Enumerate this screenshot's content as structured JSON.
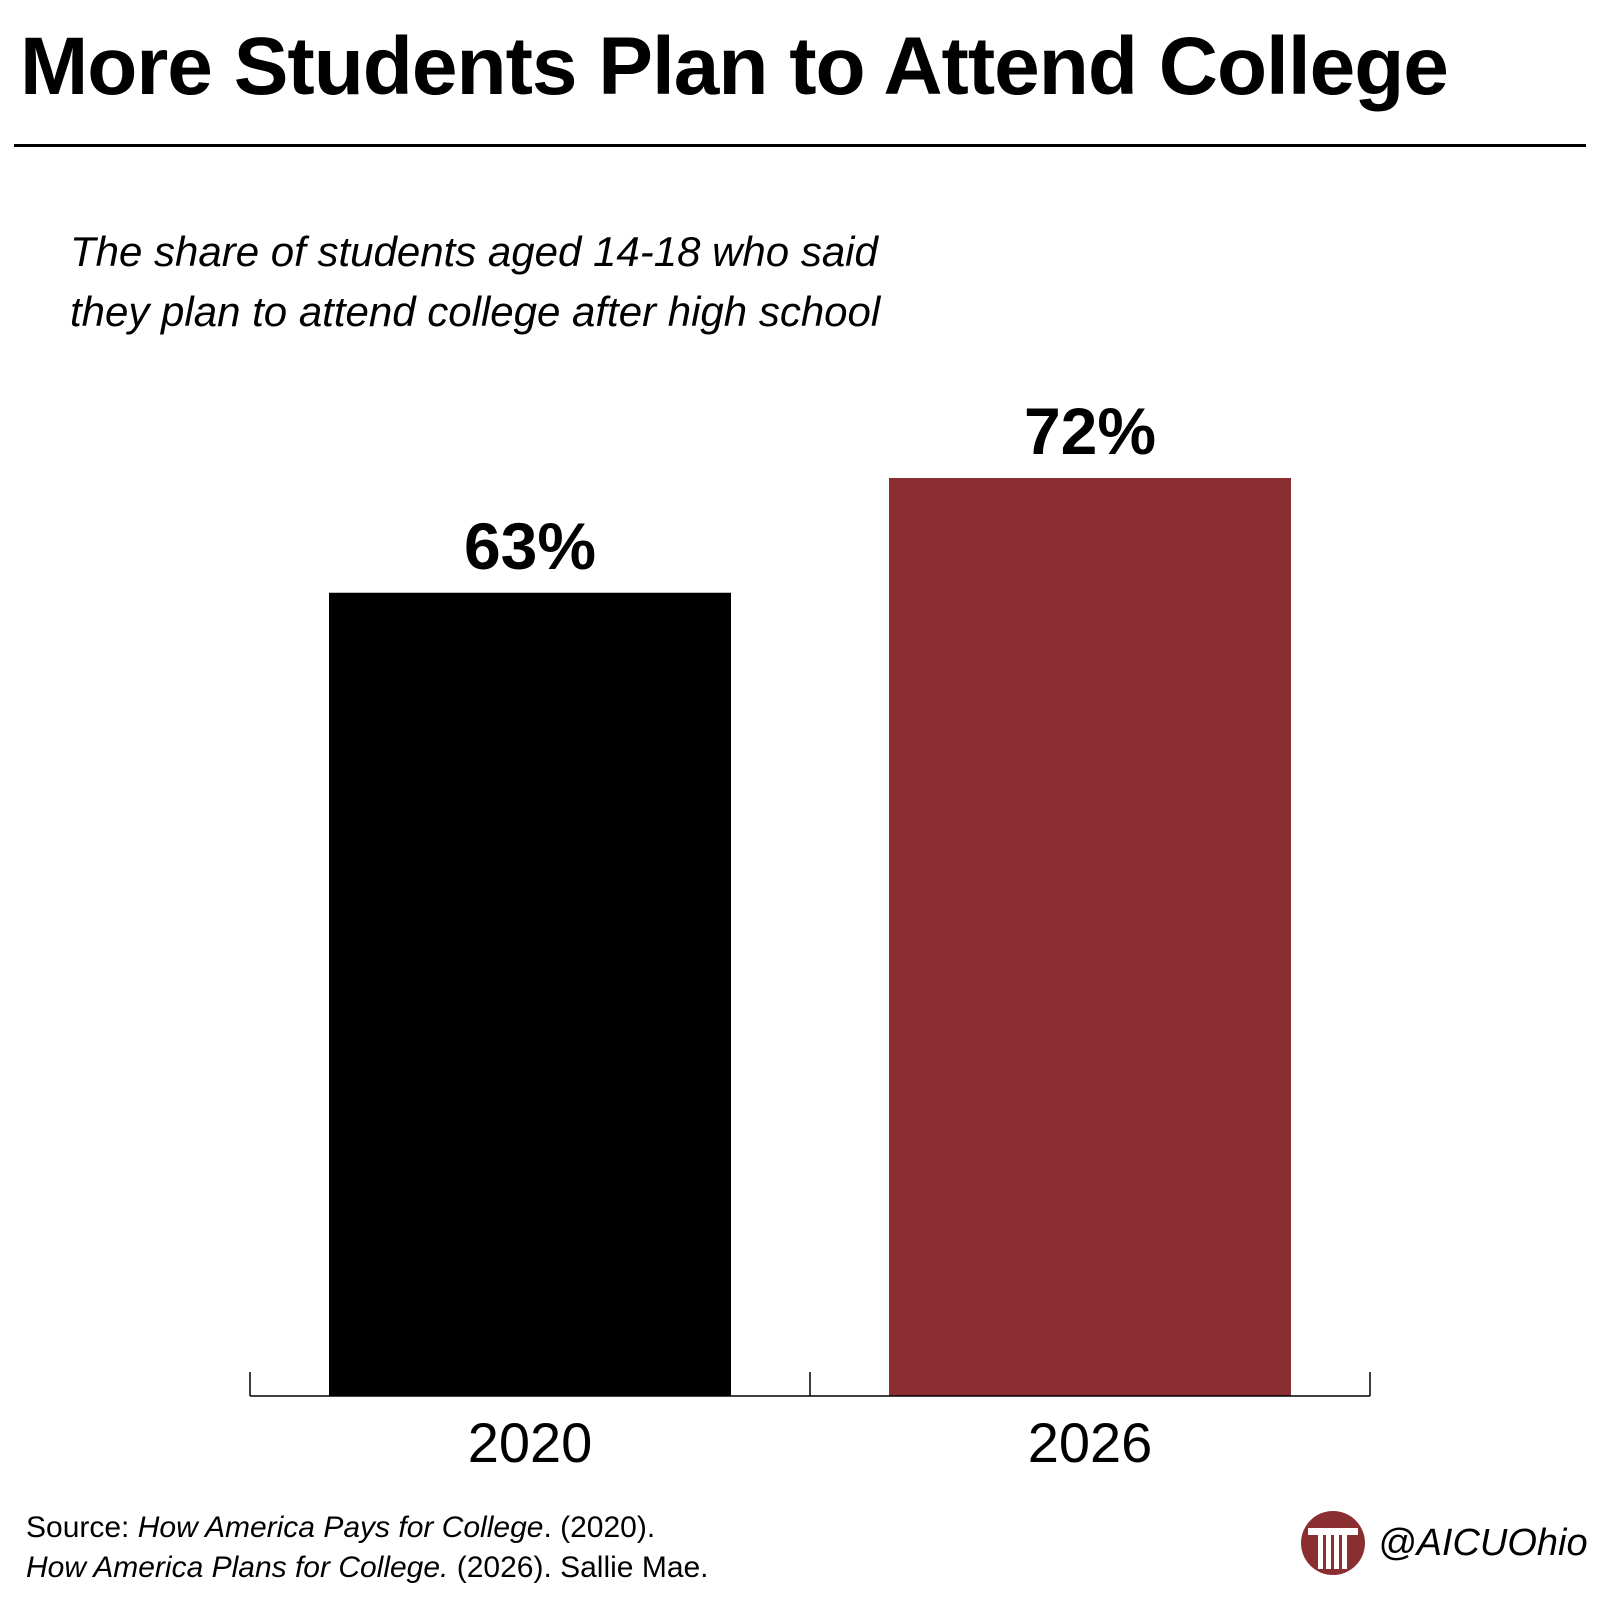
{
  "title": "More Students Plan to Attend College",
  "subtitle_lines": [
    "The share of students aged 14-18 who said",
    "they plan to attend college after high school"
  ],
  "chart_data": {
    "type": "bar",
    "title": "More Students Plan to Attend College",
    "subtitle": "The share of students aged 14-18 who said they plan to attend college after high school",
    "categories": [
      "2020",
      "2026"
    ],
    "values": [
      63,
      72
    ],
    "value_labels": [
      "63%",
      "72%"
    ],
    "colors": [
      "#000000",
      "#8b2e32"
    ],
    "xlabel": "",
    "ylabel": "",
    "ylim": [
      0,
      100
    ],
    "grid": false,
    "legend": "none"
  },
  "source": {
    "prefix": "Source: ",
    "line1_italic": "How America Pays for College",
    "line1_rest": ". (2020).",
    "line2_italic": "How America Plans for College.",
    "line2_rest": " (2026). Sallie Mae."
  },
  "brand": {
    "handle": "@AICUOhio",
    "logo_icon": "aicu-column-logo",
    "logo_color": "#8b2e32"
  }
}
